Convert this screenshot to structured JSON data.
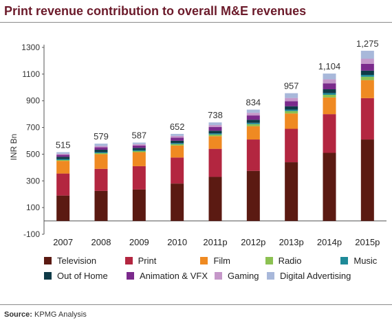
{
  "title": "Print revenue contribution to overall M&E revenues",
  "source_label": "Source:",
  "source_text": "KPMG Analysis",
  "chart_data": {
    "type": "bar",
    "stacked": true,
    "ylabel": "INR Bn",
    "xlabel": "",
    "ylim": [
      -100,
      1300
    ],
    "yticks": [
      -100,
      100,
      300,
      500,
      700,
      900,
      1100,
      1300
    ],
    "grid": false,
    "legend_position": "bottom",
    "categories": [
      "2007",
      "2008",
      "2009",
      "2010",
      "2011p",
      "2012p",
      "2013p",
      "2014p",
      "2015p"
    ],
    "totals": [
      515,
      579,
      587,
      652,
      738,
      834,
      957,
      1104,
      1275
    ],
    "total_labels": [
      "515",
      "579",
      "587",
      "652",
      "738",
      "834",
      "957",
      "1,104",
      "1,275"
    ],
    "series": [
      {
        "name": "Television",
        "color": "#5b1a12",
        "values": [
          190,
          225,
          235,
          280,
          330,
          375,
          440,
          510,
          610
        ]
      },
      {
        "name": "Print",
        "color": "#b32640",
        "values": [
          165,
          165,
          175,
          195,
          210,
          235,
          250,
          290,
          310
        ]
      },
      {
        "name": "Film",
        "color": "#ef8a22",
        "values": [
          95,
          110,
          105,
          90,
          95,
          100,
          115,
          125,
          135
        ]
      },
      {
        "name": "Radio",
        "color": "#8cc152",
        "values": [
          6,
          8,
          8,
          10,
          12,
          15,
          18,
          20,
          25
        ]
      },
      {
        "name": "Music",
        "color": "#1f8a98",
        "values": [
          7,
          7,
          7,
          8,
          9,
          10,
          11,
          13,
          14
        ]
      },
      {
        "name": "Out of Home",
        "color": "#0f3b48",
        "values": [
          17,
          18,
          17,
          18,
          20,
          23,
          25,
          28,
          32
        ]
      },
      {
        "name": "Animation & VFX",
        "color": "#7b2a8c",
        "values": [
          15,
          18,
          18,
          23,
          27,
          32,
          37,
          45,
          51
        ]
      },
      {
        "name": "Gaming",
        "color": "#c597c9",
        "values": [
          8,
          10,
          10,
          13,
          15,
          20,
          25,
          30,
          38
        ]
      },
      {
        "name": "Digital Advertising",
        "color": "#a8b8da",
        "values": [
          12,
          18,
          12,
          15,
          20,
          24,
          36,
          43,
          60
        ]
      }
    ]
  }
}
